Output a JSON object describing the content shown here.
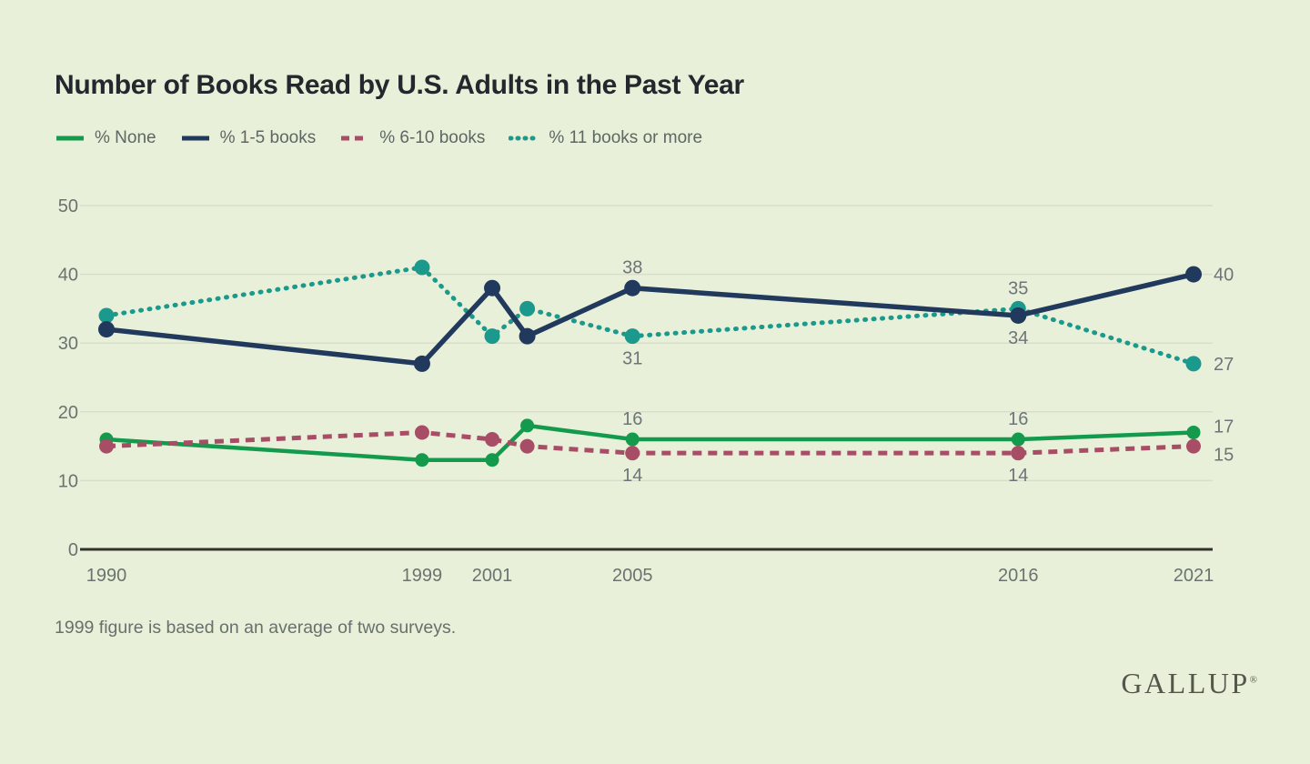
{
  "header": {
    "title": "Number of Books Read by U.S. Adults in the Past Year"
  },
  "footnote": "1999 figure is based on an average of two surveys.",
  "logo": {
    "text": "GALLUP",
    "registered": "®"
  },
  "colors": {
    "background": "#e9f0d9",
    "gridline": "#d8deca",
    "axis": "#32332d",
    "tick_text": "#6a736f",
    "point_label_text": "#6c757a",
    "title_text": "#24282e",
    "legend_text": "#5d6764",
    "footnote_text": "#67706c",
    "logo_text": "#53574c"
  },
  "chart_data": {
    "type": "line",
    "title": "Number of Books Read by U.S. Adults in the Past Year",
    "x": [
      1990,
      1999,
      2001,
      2002,
      2005,
      2016,
      2021
    ],
    "x_ticks": [
      1990,
      1999,
      2001,
      2005,
      2016,
      2021
    ],
    "xlim": [
      1990,
      2021
    ],
    "y_ticks": [
      0,
      10,
      20,
      30,
      40,
      50
    ],
    "ylim": [
      0,
      50
    ],
    "grid": true,
    "legend_position": "top-left",
    "xlabel": "",
    "ylabel": "",
    "series": [
      {
        "name": "% None",
        "color": "#149a4c",
        "style": "solid",
        "values": [
          16,
          13,
          13,
          18,
          16,
          16,
          17
        ]
      },
      {
        "name": "% 1-5 books",
        "color": "#20395c",
        "style": "solid",
        "values": [
          32,
          27,
          38,
          31,
          38,
          34,
          40
        ]
      },
      {
        "name": "% 6-10 books",
        "color": "#a74d66",
        "style": "dashed",
        "values": [
          15,
          17,
          16,
          15,
          14,
          14,
          15
        ]
      },
      {
        "name": "% 11 books or more",
        "color": "#1a998c",
        "style": "dotted",
        "values": [
          34,
          41,
          31,
          35,
          31,
          35,
          27
        ]
      }
    ],
    "z_order": [
      0,
      2,
      3,
      1
    ],
    "point_labels": [
      {
        "series": 1,
        "year": 2005,
        "text": "38",
        "pos": "above"
      },
      {
        "series": 3,
        "year": 2005,
        "text": "31",
        "pos": "below"
      },
      {
        "series": 0,
        "year": 2005,
        "text": "16",
        "pos": "above"
      },
      {
        "series": 2,
        "year": 2005,
        "text": "14",
        "pos": "below"
      },
      {
        "series": 3,
        "year": 2016,
        "text": "35",
        "pos": "above"
      },
      {
        "series": 1,
        "year": 2016,
        "text": "34",
        "pos": "below"
      },
      {
        "series": 0,
        "year": 2016,
        "text": "16",
        "pos": "above"
      },
      {
        "series": 2,
        "year": 2016,
        "text": "14",
        "pos": "below"
      },
      {
        "series": 1,
        "year": 2021,
        "text": "40",
        "pos": "right",
        "nudge": 0
      },
      {
        "series": 3,
        "year": 2021,
        "text": "27",
        "pos": "right",
        "nudge": 0
      },
      {
        "series": 0,
        "year": 2021,
        "text": "17",
        "pos": "right",
        "nudge": -7
      },
      {
        "series": 2,
        "year": 2021,
        "text": "15",
        "pos": "right",
        "nudge": 9
      }
    ]
  }
}
